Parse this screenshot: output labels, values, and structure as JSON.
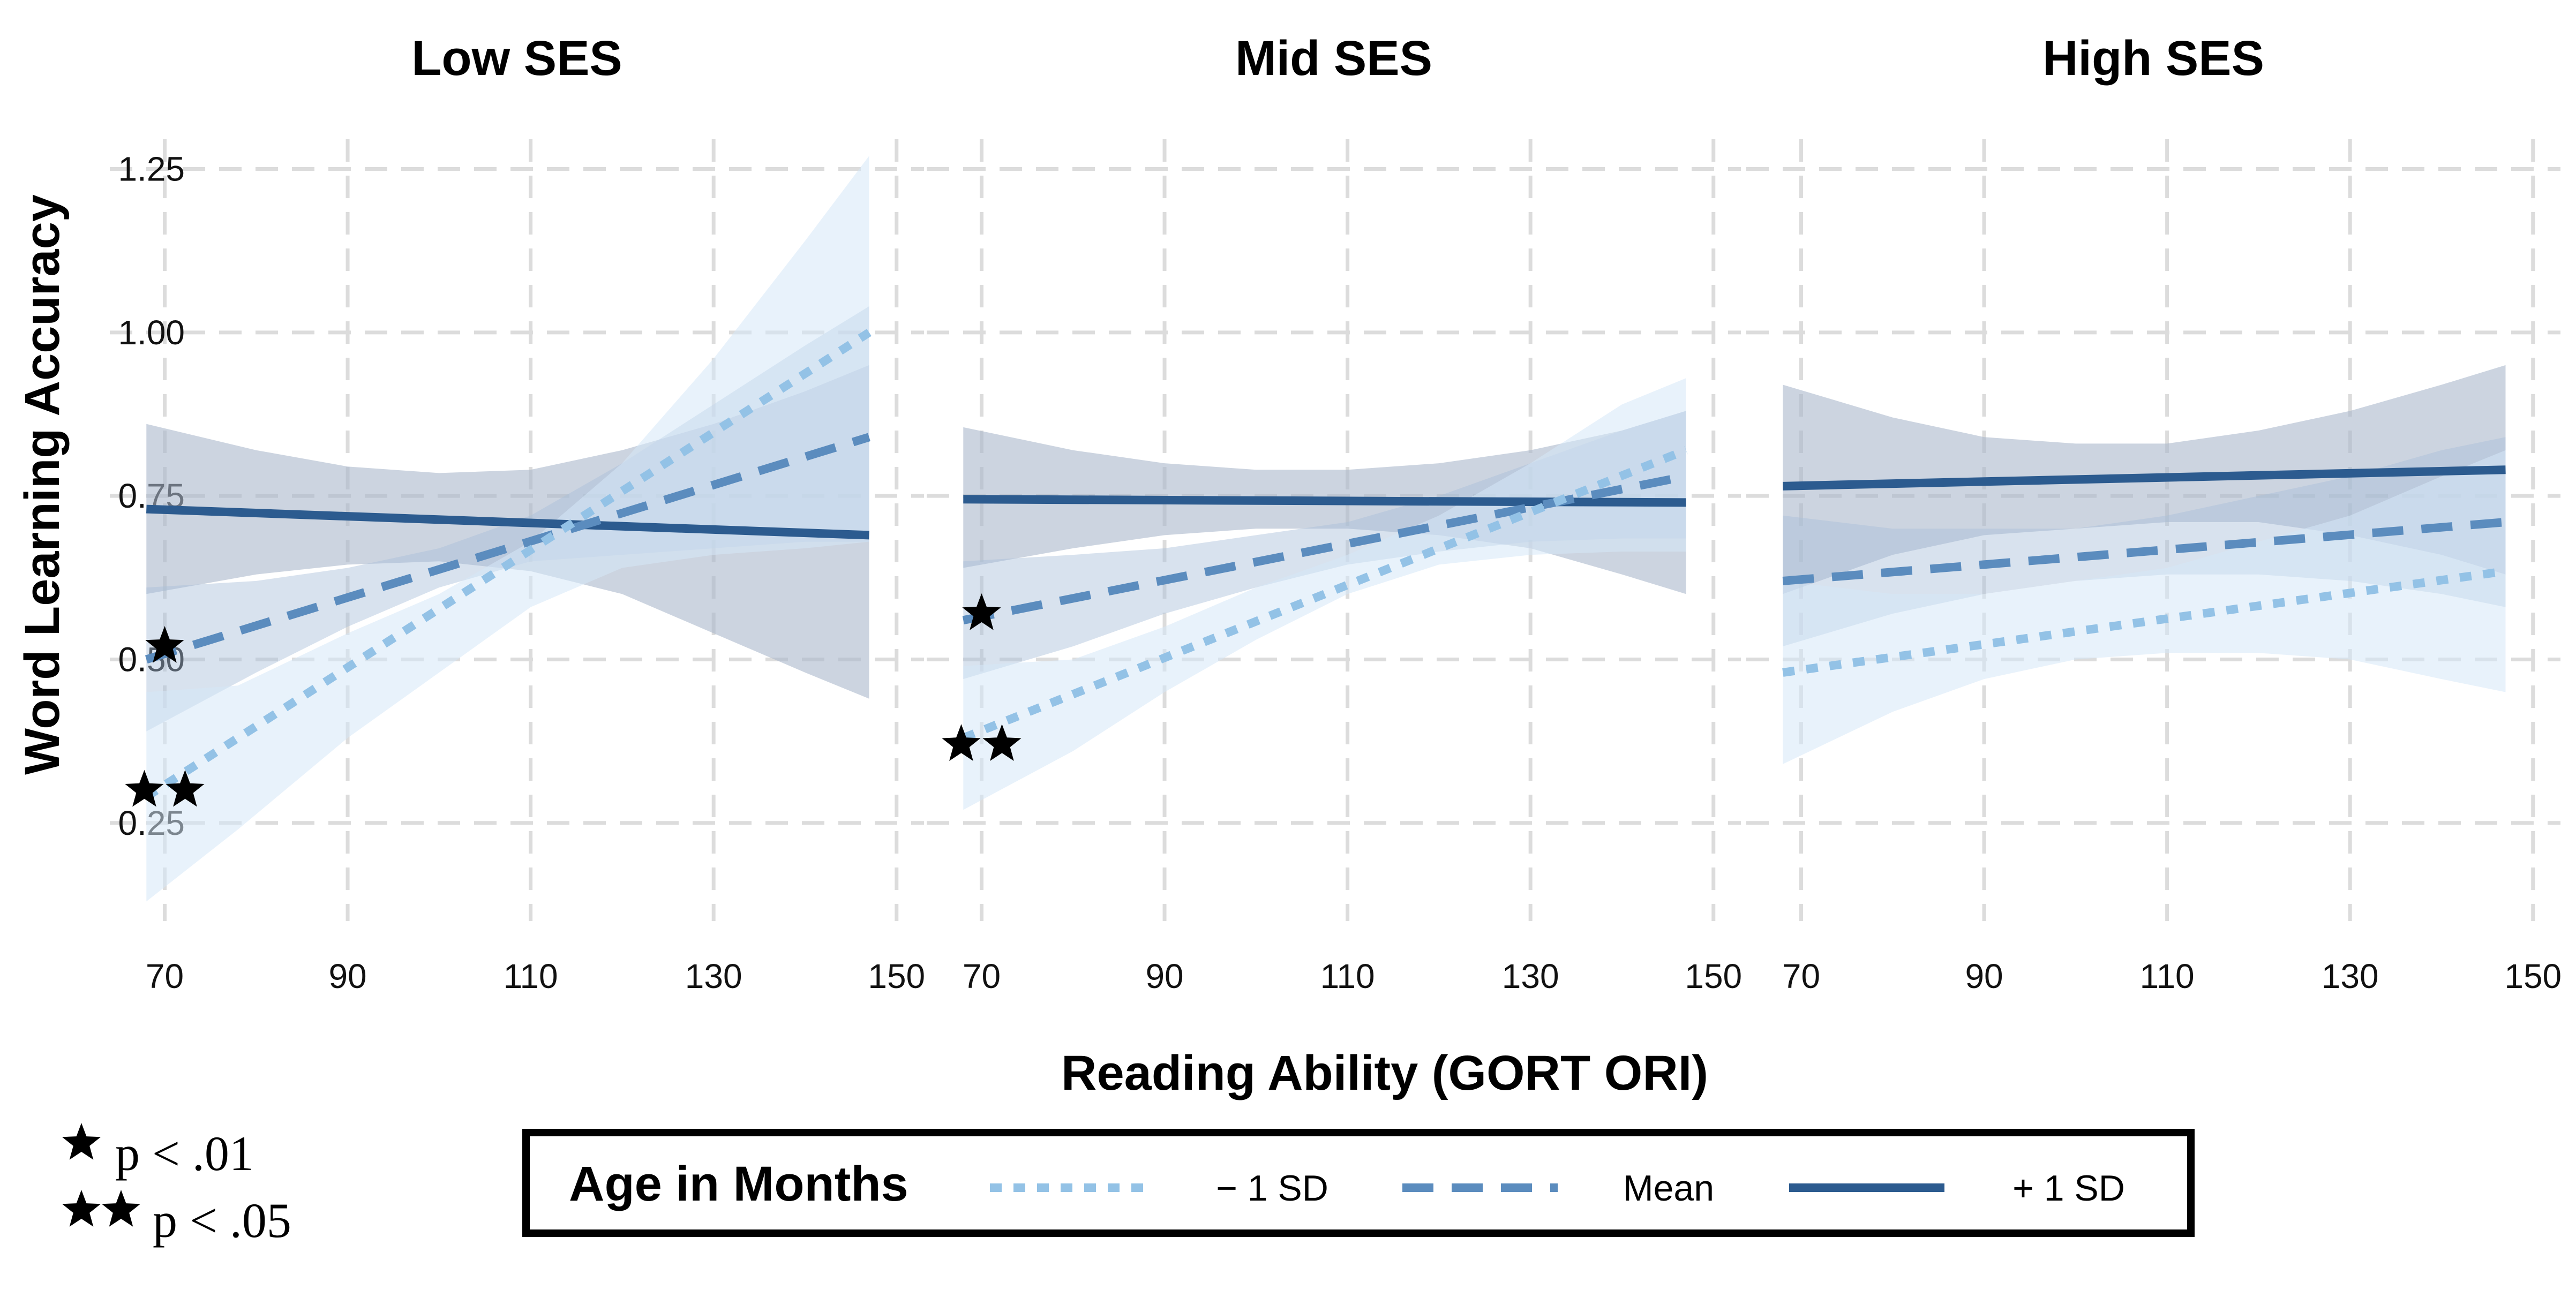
{
  "chart_data": {
    "type": "line",
    "xlabel": "Reading Ability (GORT ORI)",
    "ylabel": "Word Learning Accuracy",
    "xlim": [
      64,
      153
    ],
    "ylim": [
      0.1,
      1.32
    ],
    "xticks": [
      70,
      90,
      110,
      130,
      150
    ],
    "yticks": [
      0.25,
      0.5,
      0.75,
      1.0
    ],
    "ytick_labels": [
      "0.25",
      "0.50",
      "0.75",
      "1.00",
      "1.25"
    ],
    "ytick_values": [
      0.25,
      0.5,
      0.75,
      1.0,
      1.25
    ],
    "grid": true,
    "legend": {
      "title": "Age in Months",
      "position": "bottom",
      "entries": [
        {
          "label": "− 1 SD",
          "style": "dotted",
          "color": "#93c2e6"
        },
        {
          "label": "Mean",
          "style": "dashed",
          "color": "#5b8cbe"
        },
        {
          "label": "+ 1 SD",
          "style": "solid",
          "color": "#2c5b8f"
        }
      ]
    },
    "significance_note": [
      {
        "stars": 1,
        "label": "p < .01"
      },
      {
        "stars": 2,
        "label": "p < .05"
      }
    ],
    "band_colors": {
      "minus1": "#d6e8f8",
      "mean": "#a9bfd9",
      "plus1": "#aab8cc"
    },
    "panels": [
      {
        "title": "Low SES",
        "series": [
          {
            "key": "minus1",
            "start": [
              68,
              0.29
            ],
            "end": [
              147,
              1.0
            ],
            "band": {
              "x": [
                68,
                78,
                90,
                100,
                110,
                120,
                130,
                140,
                147
              ],
              "lo": [
                0.13,
                0.24,
                0.38,
                0.48,
                0.58,
                0.64,
                0.66,
                0.67,
                0.68
              ],
              "hi": [
                0.45,
                0.46,
                0.54,
                0.6,
                0.68,
                0.8,
                0.96,
                1.14,
                1.27
              ]
            }
          },
          {
            "key": "mean",
            "start": [
              68,
              0.5
            ],
            "end": [
              147,
              0.84
            ],
            "band": {
              "x": [
                68,
                80,
                90,
                100,
                110,
                120,
                130,
                140,
                147
              ],
              "lo": [
                0.39,
                0.48,
                0.55,
                0.61,
                0.65,
                0.66,
                0.67,
                0.68,
                0.68
              ],
              "hi": [
                0.61,
                0.62,
                0.64,
                0.67,
                0.72,
                0.8,
                0.89,
                0.98,
                1.04
              ]
            }
          },
          {
            "key": "plus1",
            "start": [
              68,
              0.73
            ],
            "end": [
              147,
              0.69
            ],
            "band": {
              "x": [
                68,
                80,
                90,
                100,
                110,
                120,
                130,
                140,
                147
              ],
              "lo": [
                0.6,
                0.63,
                0.645,
                0.65,
                0.635,
                0.6,
                0.54,
                0.48,
                0.44
              ],
              "hi": [
                0.86,
                0.82,
                0.795,
                0.785,
                0.79,
                0.82,
                0.86,
                0.91,
                0.95
              ]
            }
          }
        ],
        "markers": [
          {
            "stars": 1,
            "x": 70,
            "y": 0.52
          },
          {
            "stars": 2,
            "x": 70,
            "y": 0.3
          }
        ]
      },
      {
        "title": "Mid SES",
        "series": [
          {
            "key": "minus1",
            "start": [
              68,
              0.38
            ],
            "end": [
              147,
              0.82
            ],
            "band": {
              "x": [
                68,
                80,
                90,
                100,
                110,
                120,
                130,
                140,
                147
              ],
              "lo": [
                0.27,
                0.36,
                0.45,
                0.53,
                0.6,
                0.645,
                0.66,
                0.665,
                0.665
              ],
              "hi": [
                0.49,
                0.5,
                0.55,
                0.61,
                0.66,
                0.72,
                0.8,
                0.89,
                0.93
              ]
            }
          },
          {
            "key": "mean",
            "start": [
              68,
              0.56
            ],
            "end": [
              147,
              0.78
            ],
            "band": {
              "x": [
                68,
                80,
                90,
                100,
                110,
                120,
                130,
                140,
                147
              ],
              "lo": [
                0.47,
                0.52,
                0.57,
                0.61,
                0.645,
                0.665,
                0.68,
                0.685,
                0.685
              ],
              "hi": [
                0.65,
                0.66,
                0.67,
                0.69,
                0.71,
                0.75,
                0.8,
                0.85,
                0.88
              ]
            }
          },
          {
            "key": "plus1",
            "start": [
              68,
              0.745
            ],
            "end": [
              147,
              0.74
            ],
            "band": {
              "x": [
                68,
                80,
                90,
                100,
                110,
                120,
                130,
                140,
                147
              ],
              "lo": [
                0.64,
                0.67,
                0.69,
                0.7,
                0.7,
                0.69,
                0.67,
                0.63,
                0.6
              ],
              "hi": [
                0.855,
                0.82,
                0.8,
                0.79,
                0.79,
                0.8,
                0.82,
                0.85,
                0.88
              ]
            }
          }
        ],
        "markers": [
          {
            "stars": 1,
            "x": 70,
            "y": 0.57
          },
          {
            "stars": 2,
            "x": 70,
            "y": 0.37
          }
        ]
      },
      {
        "title": "High SES",
        "series": [
          {
            "key": "minus1",
            "start": [
              68,
              0.48
            ],
            "end": [
              147,
              0.635
            ],
            "band": {
              "x": [
                68,
                80,
                90,
                100,
                110,
                120,
                130,
                140,
                147
              ],
              "lo": [
                0.34,
                0.42,
                0.47,
                0.5,
                0.51,
                0.51,
                0.5,
                0.47,
                0.45
              ],
              "hi": [
                0.62,
                0.6,
                0.6,
                0.62,
                0.64,
                0.68,
                0.72,
                0.78,
                0.82
              ]
            }
          },
          {
            "key": "mean",
            "start": [
              68,
              0.62
            ],
            "end": [
              147,
              0.71
            ],
            "band": {
              "x": [
                68,
                80,
                90,
                100,
                110,
                120,
                130,
                140,
                147
              ],
              "lo": [
                0.52,
                0.57,
                0.6,
                0.62,
                0.63,
                0.63,
                0.62,
                0.6,
                0.58
              ],
              "hi": [
                0.72,
                0.7,
                0.7,
                0.7,
                0.72,
                0.75,
                0.78,
                0.82,
                0.84
              ]
            }
          },
          {
            "key": "plus1",
            "start": [
              68,
              0.765
            ],
            "end": [
              147,
              0.79
            ],
            "band": {
              "x": [
                68,
                80,
                90,
                100,
                110,
                120,
                130,
                140,
                147
              ],
              "lo": [
                0.6,
                0.66,
                0.69,
                0.7,
                0.71,
                0.71,
                0.69,
                0.66,
                0.63
              ],
              "hi": [
                0.92,
                0.87,
                0.84,
                0.83,
                0.83,
                0.85,
                0.88,
                0.92,
                0.95
              ]
            }
          }
        ],
        "markers": []
      }
    ]
  }
}
